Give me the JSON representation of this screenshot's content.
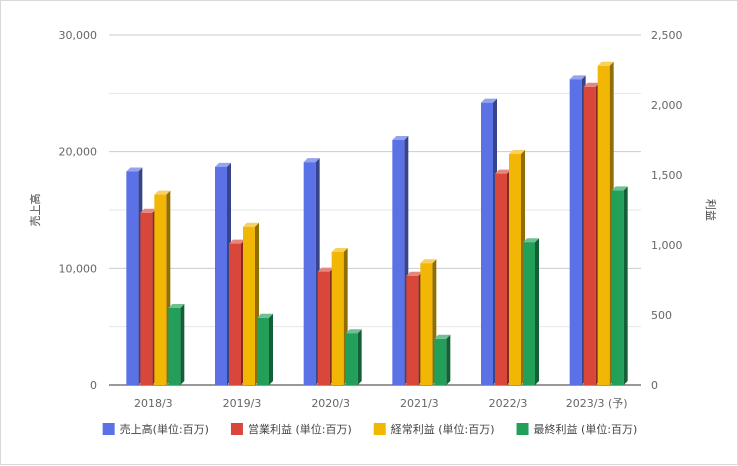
{
  "chart_data": {
    "type": "bar",
    "categories": [
      "2018/3",
      "2019/3",
      "2020/3",
      "2021/3",
      "2022/3",
      "2023/3 (予)"
    ],
    "left_axis": {
      "label": "売上高",
      "ylim": [
        0,
        30000
      ],
      "ticks": [
        "0",
        "10,000",
        "20,000",
        "30,000"
      ]
    },
    "right_axis": {
      "label": "利益",
      "ylim": [
        0,
        2500
      ],
      "ticks": [
        "0",
        "500",
        "1,000",
        "1,500",
        "2,000",
        "2,500"
      ]
    },
    "series": [
      {
        "name": "売上高(単位:百万)",
        "axis": "left",
        "color": "#5b72e6",
        "values": [
          18300,
          18700,
          19100,
          21000,
          24200,
          26200
        ]
      },
      {
        "name": "営業利益 (単位:百万)",
        "axis": "right",
        "color": "#d9473a",
        "values": [
          1230,
          1010,
          810,
          780,
          1510,
          2130
        ]
      },
      {
        "name": "経常利益 (単位:百万)",
        "axis": "right",
        "color": "#f2b705",
        "values": [
          1360,
          1130,
          950,
          870,
          1650,
          2280
        ]
      },
      {
        "name": "最終利益 (単位:百万)",
        "axis": "right",
        "color": "#22a05a",
        "values": [
          550,
          480,
          370,
          330,
          1020,
          1390
        ]
      }
    ],
    "grid": true,
    "legend": "bottom"
  }
}
